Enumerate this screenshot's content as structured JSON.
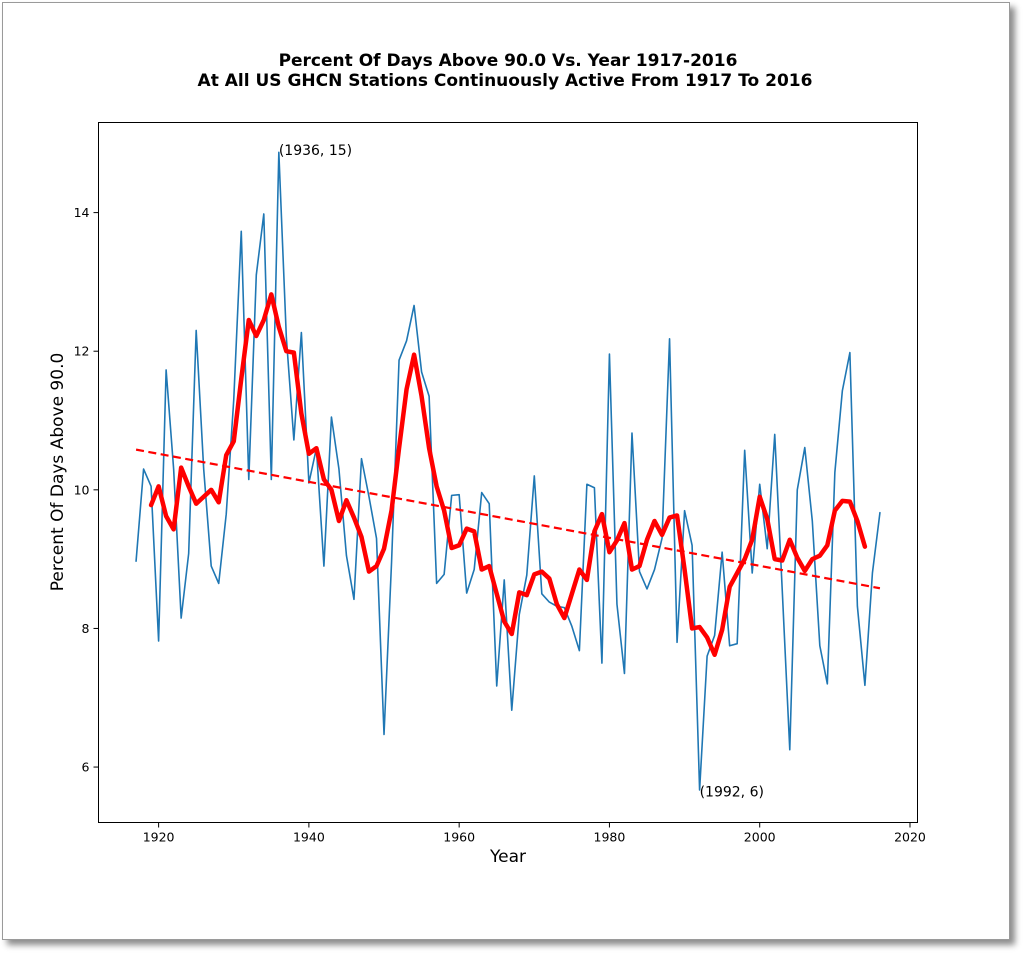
{
  "chart_data": {
    "type": "line",
    "title": "Percent Of Days Above 90.0 Vs. Year 1917-2016",
    "subtitle": "At All US GHCN Stations Continuously Active From 1917 To 2016",
    "xlabel": "Year",
    "ylabel": "Percent Of Days Above 90.0",
    "xlim": [
      1912,
      2021
    ],
    "ylim": [
      5.2,
      15.3
    ],
    "xticks": [
      "1920",
      "1940",
      "1960",
      "1980",
      "2000",
      "2020"
    ],
    "yticks": [
      "6",
      "8",
      "10",
      "12",
      "14"
    ],
    "grid": false,
    "annotations": [
      {
        "text": "(1936, 15)",
        "x": 1936,
        "y": 14.9
      },
      {
        "text": "(1992, 6)",
        "x": 1992,
        "y": 5.65
      }
    ],
    "series": [
      {
        "style": "thin-line",
        "color": "#1f77b4",
        "x": [
          1917,
          1918,
          1919,
          1920,
          1921,
          1922,
          1923,
          1924,
          1925,
          1926,
          1927,
          1928,
          1929,
          1930,
          1931,
          1932,
          1933,
          1934,
          1935,
          1936,
          1937,
          1938,
          1939,
          1940,
          1941,
          1942,
          1943,
          1944,
          1945,
          1946,
          1947,
          1948,
          1949,
          1950,
          1951,
          1952,
          1953,
          1954,
          1955,
          1956,
          1957,
          1958,
          1959,
          1960,
          1961,
          1962,
          1963,
          1964,
          1965,
          1966,
          1967,
          1968,
          1969,
          1970,
          1971,
          1972,
          1973,
          1974,
          1975,
          1976,
          1977,
          1978,
          1979,
          1980,
          1981,
          1982,
          1983,
          1984,
          1985,
          1986,
          1987,
          1988,
          1989,
          1990,
          1991,
          1992,
          1993,
          1994,
          1995,
          1996,
          1997,
          1998,
          1999,
          2000,
          2001,
          2002,
          2003,
          2004,
          2005,
          2006,
          2007,
          2008,
          2009,
          2010,
          2011,
          2012,
          2013,
          2014,
          2015,
          2016
        ],
        "values": [
          8.97,
          10.3,
          10.05,
          7.82,
          11.73,
          10.3,
          8.15,
          9.08,
          12.3,
          10.3,
          8.9,
          8.65,
          9.65,
          11.3,
          13.73,
          10.15,
          13.1,
          13.98,
          10.15,
          14.87,
          12.2,
          10.72,
          12.27,
          10.1,
          10.6,
          8.9,
          11.05,
          10.3,
          9.05,
          8.42,
          10.45,
          9.9,
          9.3,
          6.47,
          8.95,
          11.87,
          12.15,
          12.66,
          11.7,
          11.35,
          8.65,
          8.78,
          9.92,
          9.93,
          8.51,
          8.85,
          9.96,
          9.8,
          7.17,
          8.7,
          6.82,
          8.2,
          8.77,
          10.2,
          8.5,
          8.38,
          8.32,
          8.3,
          8.03,
          7.68,
          10.08,
          10.03,
          7.5,
          11.96,
          8.35,
          7.35,
          10.82,
          8.82,
          8.57,
          8.85,
          9.3,
          12.18,
          7.8,
          9.7,
          9.2,
          5.67,
          7.6,
          7.9,
          9.1,
          7.75,
          7.78,
          10.57,
          8.8,
          10.08,
          9.15,
          10.8,
          8.55,
          6.25,
          10.0,
          10.61,
          9.55,
          7.75,
          7.2,
          10.25,
          11.43,
          11.98,
          8.32,
          7.18,
          8.8,
          9.67
        ]
      },
      {
        "style": "thick-line",
        "color": "#ff0000",
        "x": [
          1919,
          1920,
          1921,
          1922,
          1923,
          1924,
          1925,
          1926,
          1927,
          1928,
          1929,
          1930,
          1931,
          1932,
          1933,
          1934,
          1935,
          1936,
          1937,
          1938,
          1939,
          1940,
          1941,
          1942,
          1943,
          1944,
          1945,
          1946,
          1947,
          1948,
          1949,
          1950,
          1951,
          1952,
          1953,
          1954,
          1955,
          1956,
          1957,
          1958,
          1959,
          1960,
          1961,
          1962,
          1963,
          1964,
          1965,
          1966,
          1967,
          1968,
          1969,
          1970,
          1971,
          1972,
          1973,
          1974,
          1975,
          1976,
          1977,
          1978,
          1979,
          1980,
          1981,
          1982,
          1983,
          1984,
          1985,
          1986,
          1987,
          1988,
          1989,
          1990,
          1991,
          1992,
          1993,
          1994,
          1995,
          1996,
          1997,
          1998,
          1999,
          2000,
          2001,
          2002,
          2003,
          2004,
          2005,
          2006,
          2007,
          2008,
          2009,
          2010,
          2011,
          2012,
          2013,
          2014
        ],
        "values": [
          9.78,
          10.05,
          9.62,
          9.43,
          10.32,
          10.05,
          9.8,
          9.9,
          10.0,
          9.82,
          10.5,
          10.7,
          11.6,
          12.45,
          12.22,
          12.45,
          12.82,
          12.35,
          12.0,
          11.98,
          11.1,
          10.52,
          10.6,
          10.15,
          10.0,
          9.55,
          9.85,
          9.6,
          9.32,
          8.82,
          8.9,
          9.15,
          9.7,
          10.6,
          11.45,
          11.95,
          11.35,
          10.6,
          10.05,
          9.7,
          9.16,
          9.2,
          9.44,
          9.4,
          8.85,
          8.9,
          8.5,
          8.1,
          7.92,
          8.52,
          8.48,
          8.78,
          8.82,
          8.72,
          8.35,
          8.15,
          8.5,
          8.85,
          8.7,
          9.4,
          9.65,
          9.1,
          9.27,
          9.52,
          8.85,
          8.9,
          9.28,
          9.55,
          9.35,
          9.6,
          9.63,
          8.85,
          8.0,
          8.02,
          7.87,
          7.62,
          7.98,
          8.6,
          8.8,
          9.0,
          9.28,
          9.9,
          9.58,
          9.0,
          8.98,
          9.28,
          9.02,
          8.83,
          9.0,
          9.05,
          9.2,
          9.7,
          9.84,
          9.83,
          9.55,
          9.18
        ]
      },
      {
        "style": "dashed-trend",
        "color": "#ff0000",
        "x": [
          1917,
          2016
        ],
        "values": [
          10.58,
          8.58
        ]
      }
    ]
  }
}
